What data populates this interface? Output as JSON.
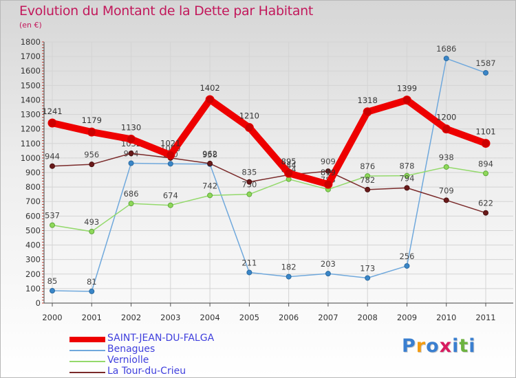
{
  "title": "Evolution du Montant de la Dette par Habitant",
  "unit": "(en €)",
  "logo": {
    "letters": [
      "P",
      "r",
      "o",
      "x",
      "i",
      "t",
      "i"
    ],
    "colors": [
      "#3a7fd0",
      "#f39c12",
      "#3a7fd0",
      "#d81b60",
      "#3a7fd0",
      "#6db33f",
      "#3a7fd0"
    ]
  },
  "chart_data": {
    "type": "line",
    "categories": [
      "2000",
      "2001",
      "2002",
      "2003",
      "2004",
      "2005",
      "2006",
      "2007",
      "2008",
      "2009",
      "2010",
      "2011"
    ],
    "ylim": [
      0,
      1800
    ],
    "yticks": [
      0,
      100,
      200,
      300,
      400,
      500,
      600,
      700,
      800,
      900,
      1000,
      1100,
      1200,
      1300,
      1400,
      1500,
      1600,
      1700,
      1800
    ],
    "legend_position": "bottom-left",
    "series": [
      {
        "name": "SAINT-JEAN-DU-FALGA",
        "color": "#ee0000",
        "values": [
          1241,
          1179,
          1130,
          1021,
          1402,
          1210,
          895,
          819,
          1318,
          1399,
          1200,
          1101
        ]
      },
      {
        "name": "Benagues",
        "color": "#6fa8dc",
        "values": [
          85,
          81,
          964,
          960,
          958,
          211,
          182,
          203,
          173,
          256,
          1686,
          1587
        ]
      },
      {
        "name": "Verniolle",
        "color": "#93d96b",
        "values": [
          537,
          493,
          686,
          674,
          742,
          750,
          854,
          783,
          876,
          878,
          938,
          894
        ]
      },
      {
        "name": "La Tour-du-Crieu",
        "color": "#7a2a2a",
        "values": [
          944,
          956,
          1032,
          1000,
          962,
          835,
          884,
          909,
          782,
          794,
          709,
          622
        ]
      }
    ]
  },
  "legend_colors": [
    "#3f3fdd",
    "#3f3fdd",
    "#3f3fdd",
    "#3f3fdd"
  ]
}
